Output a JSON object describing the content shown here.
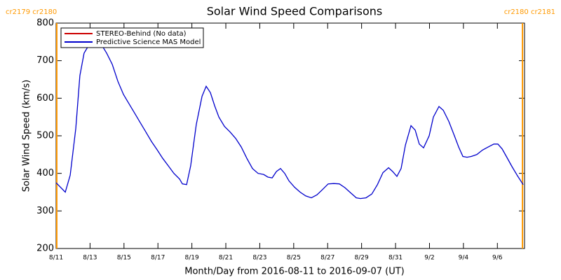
{
  "chart_data": {
    "type": "line",
    "title": "Solar Wind Speed Comparisons",
    "xlabel": "Month/Day from 2016-08-11 to 2016-09-07 (UT)",
    "ylabel": "Solar Wind Speed (km/s)",
    "xlim": [
      0,
      27.6
    ],
    "ylim": [
      200,
      800
    ],
    "yticks": [
      200,
      300,
      400,
      500,
      600,
      700,
      800
    ],
    "xticks": [
      {
        "value": 0,
        "label": "8/11"
      },
      {
        "value": 2,
        "label": "8/13"
      },
      {
        "value": 4,
        "label": "8/15"
      },
      {
        "value": 6,
        "label": "8/17"
      },
      {
        "value": 8,
        "label": "8/19"
      },
      {
        "value": 10,
        "label": "8/21"
      },
      {
        "value": 12,
        "label": "8/23"
      },
      {
        "value": 14,
        "label": "8/25"
      },
      {
        "value": 16,
        "label": "8/27"
      },
      {
        "value": 18,
        "label": "8/29"
      },
      {
        "value": 20,
        "label": "8/31"
      },
      {
        "value": 22,
        "label": "9/2"
      },
      {
        "value": 24,
        "label": "9/4"
      },
      {
        "value": 26,
        "label": "9/6"
      }
    ],
    "markers": [
      {
        "x": 0.04,
        "label": "cr2179 cr2180",
        "color": "#ff9900"
      },
      {
        "x": 27.48,
        "label": "cr2180 cr2181",
        "color": "#ff9900"
      }
    ],
    "series": [
      {
        "name": "STEREO-Behind (No data)",
        "color": "#cc0000",
        "x": [],
        "values": []
      },
      {
        "name": "Predictive Science MAS Model",
        "color": "#0000cc",
        "x": [
          0,
          0.54,
          0.83,
          1.16,
          1.4,
          1.65,
          1.98,
          2.31,
          2.64,
          2.98,
          3.31,
          3.64,
          3.97,
          4.3,
          4.63,
          4.96,
          5.29,
          5.62,
          5.95,
          6.28,
          6.61,
          6.94,
          7.27,
          7.44,
          7.69,
          7.93,
          8.26,
          8.6,
          8.84,
          9.09,
          9.34,
          9.59,
          9.92,
          10.25,
          10.58,
          10.91,
          11.24,
          11.57,
          11.9,
          12.23,
          12.48,
          12.73,
          12.98,
          13.22,
          13.47,
          13.72,
          14.05,
          14.38,
          14.71,
          15.04,
          15.37,
          15.7,
          16.03,
          16.36,
          16.69,
          17.02,
          17.36,
          17.69,
          17.93,
          18.26,
          18.6,
          18.93,
          19.26,
          19.59,
          19.83,
          20.08,
          20.33,
          20.58,
          20.91,
          21.16,
          21.4,
          21.65,
          21.98,
          22.23,
          22.56,
          22.81,
          23.14,
          23.47,
          23.72,
          23.97,
          24.21,
          24.46,
          24.79,
          25.12,
          25.45,
          25.79,
          26.03,
          26.28,
          26.53,
          26.86,
          27.19,
          27.52
        ],
        "values": [
          375,
          350,
          395,
          520,
          660,
          720,
          745,
          750,
          745,
          720,
          690,
          645,
          610,
          585,
          560,
          535,
          510,
          485,
          463,
          440,
          420,
          400,
          385,
          372,
          370,
          420,
          530,
          605,
          632,
          615,
          580,
          550,
          525,
          510,
          493,
          470,
          440,
          413,
          400,
          397,
          390,
          388,
          405,
          413,
          400,
          380,
          363,
          350,
          340,
          335,
          343,
          357,
          372,
          373,
          372,
          362,
          348,
          335,
          333,
          335,
          345,
          370,
          402,
          415,
          405,
          392,
          413,
          475,
          527,
          515,
          478,
          468,
          500,
          550,
          578,
          568,
          538,
          500,
          470,
          445,
          443,
          445,
          450,
          462,
          470,
          478,
          478,
          465,
          445,
          418,
          393,
          370
        ]
      }
    ]
  }
}
